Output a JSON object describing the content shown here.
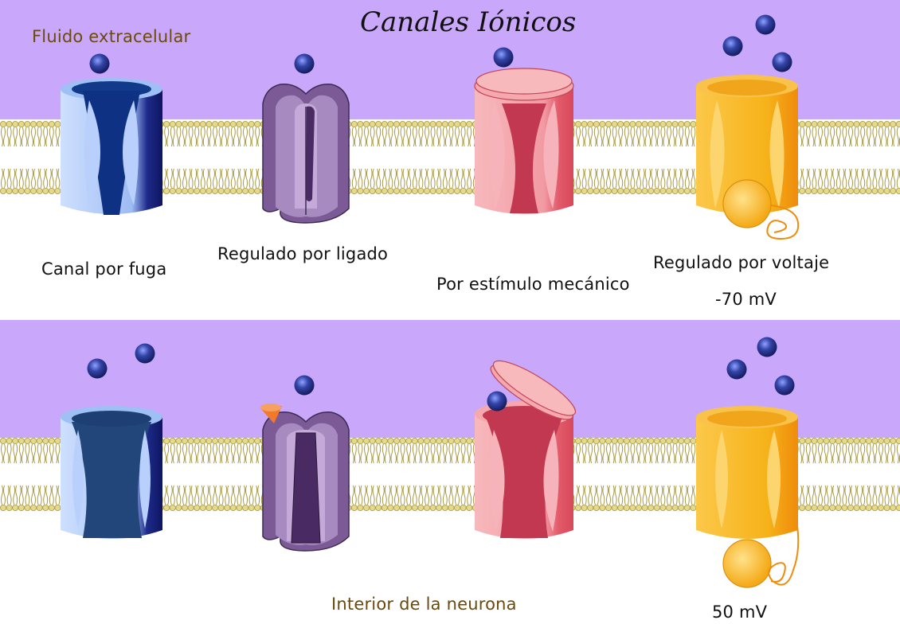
{
  "diagram": {
    "title": "Canales Iónicos",
    "extracellular_label": "Fluido extracelular",
    "intracellular_label": "Interior de la neurona",
    "channels": [
      {
        "label": "Canal por fuga",
        "color": "#9fc0f4"
      },
      {
        "label": "Regulado por ligado",
        "color": "#8e6aa8"
      },
      {
        "label": "Por estímulo mecánico",
        "color": "#f08a95"
      },
      {
        "label": "Regulado por voltaje",
        "color": "#f5b018"
      }
    ],
    "voltage_resting": "-70 mV",
    "voltage_active": "50 mV",
    "colors": {
      "extracellular": "#c9a7fb",
      "lipid_head": "#e6d98a",
      "lipid_outline": "#a89a45",
      "ion": "#2a3b9a",
      "ligand": "#f07a2a"
    }
  }
}
